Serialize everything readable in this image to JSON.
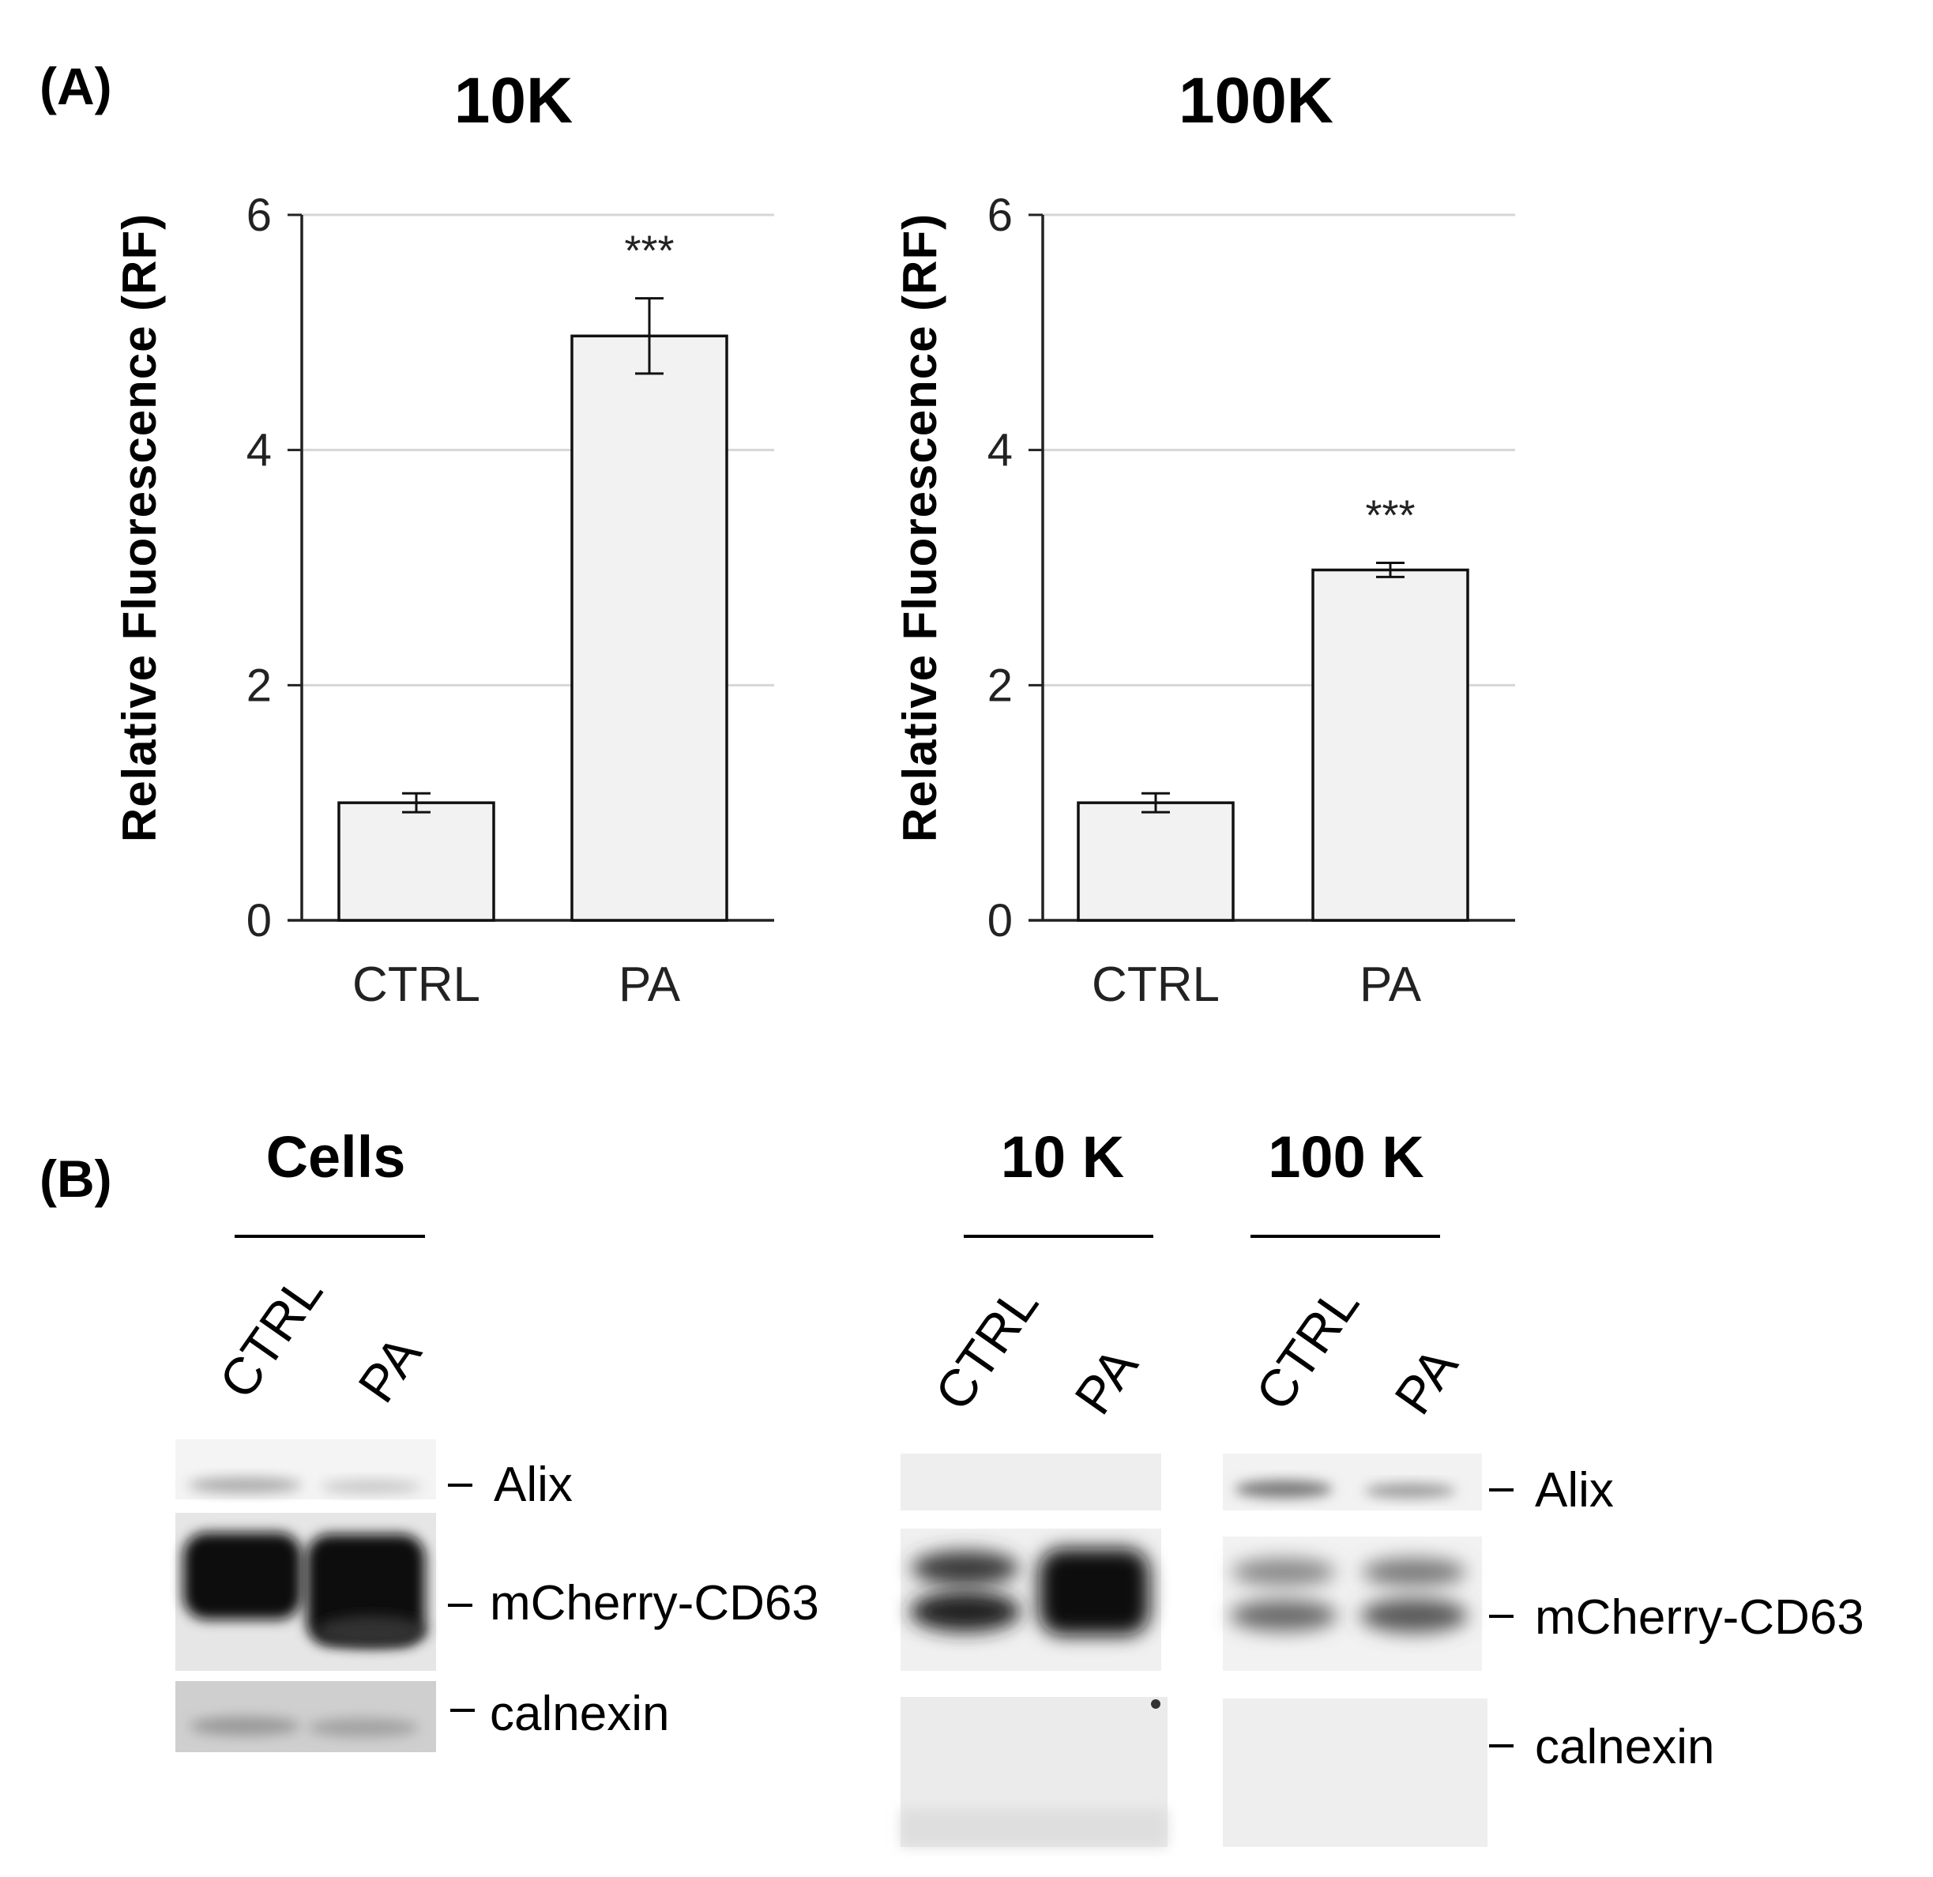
{
  "panel_labels": {
    "a": "(A)",
    "b": "(B)"
  },
  "chart_data": [
    {
      "type": "bar",
      "title": "10K",
      "ylabel": "Relative Fluorescence (RF)",
      "xlabel": "",
      "categories": [
        "CTRL",
        "PA"
      ],
      "values": [
        1.0,
        4.97
      ],
      "errors": [
        0.08,
        0.32
      ],
      "annotations": [
        "",
        "***"
      ],
      "ylim": [
        0,
        6
      ],
      "yticks": [
        "0",
        "2",
        "4",
        "6"
      ],
      "grid": true,
      "bar_color": "#f2f2f2"
    },
    {
      "type": "bar",
      "title": "100K",
      "ylabel": "Relative Fluorescence (RF)",
      "xlabel": "",
      "categories": [
        "CTRL",
        "PA"
      ],
      "values": [
        1.0,
        2.98
      ],
      "errors": [
        0.08,
        0.06
      ],
      "annotations": [
        "",
        "***"
      ],
      "ylim": [
        0,
        6
      ],
      "yticks": [
        "0",
        "2",
        "4",
        "6"
      ],
      "grid": true,
      "bar_color": "#f2f2f2"
    }
  ],
  "blots": {
    "groups": [
      {
        "title": "Cells",
        "lanes": [
          "CTRL",
          "PA"
        ]
      },
      {
        "title": "10 K",
        "lanes": [
          "CTRL",
          "PA"
        ]
      },
      {
        "title": "100 K",
        "lanes": [
          "CTRL",
          "PA"
        ]
      }
    ],
    "proteins_left": [
      "Alix",
      "mCherry-CD63",
      "calnexin"
    ],
    "proteins_right": [
      "Alix",
      "mCherry-CD63",
      "calnexin"
    ]
  }
}
